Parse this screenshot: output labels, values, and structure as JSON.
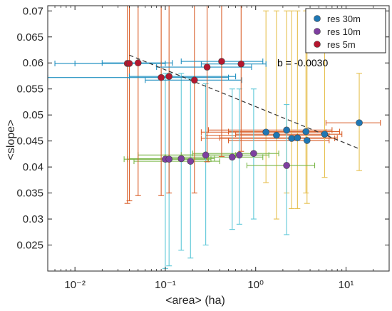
{
  "chart_data": {
    "type": "scatter",
    "xlabel": "<area> (ha)",
    "ylabel": "<slope>",
    "xscale": "log",
    "xlim": [
      0.005,
      30
    ],
    "ylim": [
      0.02,
      0.071
    ],
    "x_ticks": [
      0.01,
      0.1,
      1,
      10
    ],
    "x_tick_labels": [
      "10⁻²",
      "10⁻¹",
      "10⁰",
      "10¹"
    ],
    "y_ticks": [
      0.025,
      0.03,
      0.035,
      0.04,
      0.045,
      0.05,
      0.055,
      0.06,
      0.065,
      0.07
    ],
    "y_tick_labels": [
      "0.025",
      "0.03",
      "0.035",
      "0.04",
      "0.045",
      "0.05",
      "0.055",
      "0.06",
      "0.065",
      "0.07"
    ],
    "grid": false,
    "legend_position": "top-right",
    "annotation": "b = -0.0030",
    "trend_line": {
      "x": [
        0.04,
        14
      ],
      "y": [
        0.0615,
        0.0435
      ],
      "style": "dashed",
      "color": "#333333"
    },
    "series": [
      {
        "name": "res 30m",
        "marker_color": "#1f77b4",
        "x_err_color": "#d95f2a",
        "y_err_color": "#e6c050",
        "points": [
          {
            "x": 1.3,
            "y": 0.0467,
            "xerr": [
              0.25,
              6.0
            ],
            "yerr": [
              0.037,
              0.07
            ]
          },
          {
            "x": 1.7,
            "y": 0.0461,
            "xerr": [
              0.28,
              6.5
            ],
            "yerr": [
              0.03,
              0.07
            ]
          },
          {
            "x": 2.2,
            "y": 0.0471,
            "xerr": [
              0.3,
              7.0
            ],
            "yerr": [
              0.035,
              0.07
            ]
          },
          {
            "x": 2.5,
            "y": 0.0455,
            "xerr": [
              0.25,
              7.5
            ],
            "yerr": [
              0.032,
              0.07
            ]
          },
          {
            "x": 2.9,
            "y": 0.0456,
            "xerr": [
              0.4,
              8.0
            ],
            "yerr": [
              0.032,
              0.07
            ]
          },
          {
            "x": 3.6,
            "y": 0.0468,
            "xerr": [
              0.5,
              8.5
            ],
            "yerr": [
              0.035,
              0.07
            ]
          },
          {
            "x": 3.7,
            "y": 0.0451,
            "xerr": [
              0.5,
              6.5
            ],
            "yerr": [
              0.033,
              0.07
            ]
          },
          {
            "x": 5.8,
            "y": 0.0463,
            "xerr": [
              0.6,
              9.0
            ],
            "yerr": [
              0.038,
              0.07
            ]
          },
          {
            "x": 14.0,
            "y": 0.0485,
            "xerr": [
              6.0,
              24.0
            ],
            "yerr": [
              0.0393,
              0.058
            ]
          }
        ]
      },
      {
        "name": "res 10m",
        "marker_color": "#7e3fa0",
        "x_err_color": "#7ab648",
        "y_err_color": "#5ec8d8",
        "points": [
          {
            "x": 0.1,
            "y": 0.0415,
            "xerr": [
              0.035,
              0.3
            ],
            "yerr": [
              0.0205,
              0.058
            ]
          },
          {
            "x": 0.11,
            "y": 0.0415,
            "xerr": [
              0.038,
              0.32
            ],
            "yerr": [
              0.021,
              0.058
            ]
          },
          {
            "x": 0.15,
            "y": 0.0416,
            "xerr": [
              0.04,
              0.35
            ],
            "yerr": [
              0.024,
              0.058
            ]
          },
          {
            "x": 0.19,
            "y": 0.0411,
            "xerr": [
              0.045,
              0.4
            ],
            "yerr": [
              0.0225,
              0.057
            ]
          },
          {
            "x": 0.28,
            "y": 0.0423,
            "xerr": [
              0.05,
              0.6
            ],
            "yerr": [
              0.025,
              0.056
            ]
          },
          {
            "x": 0.55,
            "y": 0.0419,
            "xerr": [
              0.1,
              1.2
            ],
            "yerr": [
              0.028,
              0.055
            ]
          },
          {
            "x": 0.66,
            "y": 0.0423,
            "xerr": [
              0.15,
              1.4
            ],
            "yerr": [
              0.029,
              0.055
            ]
          },
          {
            "x": 0.95,
            "y": 0.0426,
            "xerr": [
              0.2,
              1.8
            ],
            "yerr": [
              0.03,
              0.055
            ]
          },
          {
            "x": 2.2,
            "y": 0.0403,
            "xerr": [
              0.8,
              4.5
            ],
            "yerr": [
              0.027,
              0.052
            ]
          }
        ]
      },
      {
        "name": "res 5m",
        "marker_color": "#b5172f",
        "x_err_color": "#1f8fc0",
        "y_err_color": "#d95f2a",
        "points": [
          {
            "x": 0.038,
            "y": 0.0599,
            "xerr": [
              0.006,
              0.09
            ],
            "yerr": [
              0.033,
              0.071
            ]
          },
          {
            "x": 0.04,
            "y": 0.0599,
            "xerr": [
              0.01,
              0.1
            ],
            "yerr": [
              0.0335,
              0.071
            ]
          },
          {
            "x": 0.05,
            "y": 0.06,
            "xerr": [
              0.02,
              0.12
            ],
            "yerr": [
              0.0345,
              0.071
            ]
          },
          {
            "x": 0.09,
            "y": 0.0572,
            "xerr": [
              0.005,
              0.5
            ],
            "yerr": [
              0.0345,
              0.071
            ]
          },
          {
            "x": 0.11,
            "y": 0.0574,
            "xerr": [
              0.04,
              0.6
            ],
            "yerr": [
              0.035,
              0.071
            ]
          },
          {
            "x": 0.21,
            "y": 0.0567,
            "xerr": [
              0.06,
              0.7
            ],
            "yerr": [
              0.035,
              0.071
            ]
          },
          {
            "x": 0.29,
            "y": 0.0592,
            "xerr": [
              0.08,
              0.9
            ],
            "yerr": [
              0.041,
              0.071
            ]
          },
          {
            "x": 0.42,
            "y": 0.0603,
            "xerr": [
              0.15,
              1.2
            ],
            "yerr": [
              0.042,
              0.071
            ]
          },
          {
            "x": 0.69,
            "y": 0.0598,
            "xerr": [
              0.25,
              1.3
            ],
            "yerr": [
              0.043,
              0.071
            ]
          }
        ]
      }
    ]
  }
}
